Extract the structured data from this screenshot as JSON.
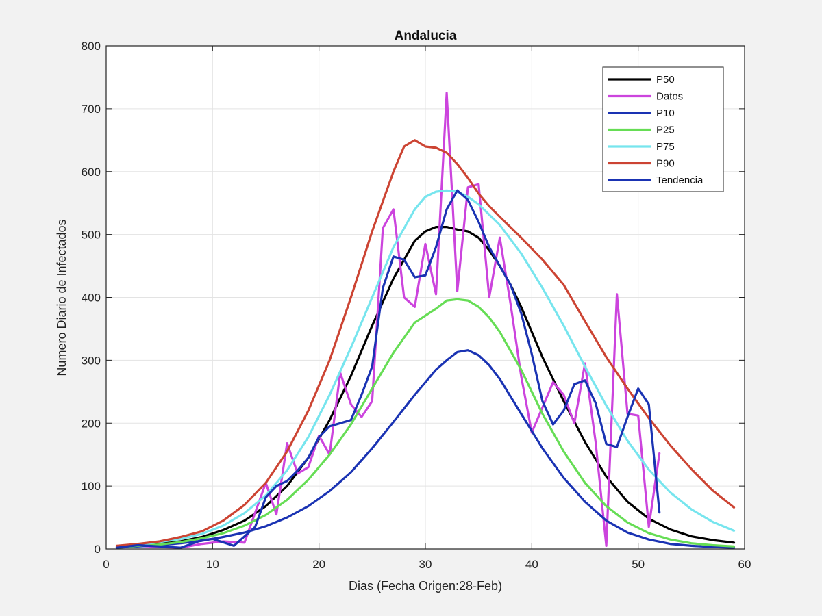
{
  "chart_data": {
    "type": "line",
    "title": "Andalucia",
    "xlabel": "Dias (Fecha Origen:28-Feb)",
    "ylabel": "Numero Diario de Infectados",
    "xlim": [
      0,
      60
    ],
    "ylim": [
      0,
      800
    ],
    "xticks": [
      0,
      10,
      20,
      30,
      40,
      50,
      60
    ],
    "yticks": [
      0,
      100,
      200,
      300,
      400,
      500,
      600,
      700,
      800
    ],
    "xtick_labels": [
      "0",
      "10",
      "20",
      "30",
      "40",
      "50",
      "60"
    ],
    "ytick_labels": [
      "0",
      "100",
      "200",
      "300",
      "400",
      "500",
      "600",
      "700",
      "800"
    ],
    "grid": true,
    "legend_position": "top-right",
    "series": [
      {
        "name": "P50",
        "color": "#000000",
        "x": [
          1,
          3,
          5,
          7,
          9,
          11,
          13,
          15,
          17,
          19,
          21,
          23,
          25,
          27,
          29,
          30,
          31,
          32,
          33,
          34,
          35,
          36,
          37,
          38,
          39,
          41,
          43,
          45,
          47,
          49,
          51,
          53,
          55,
          57,
          59
        ],
        "y": [
          3,
          5,
          8,
          12,
          19,
          30,
          45,
          68,
          100,
          145,
          205,
          275,
          355,
          430,
          490,
          505,
          512,
          512,
          508,
          505,
          495,
          475,
          450,
          420,
          385,
          305,
          235,
          170,
          115,
          75,
          48,
          31,
          20,
          14,
          10
        ]
      },
      {
        "name": "Datos",
        "color": "#cc44dd",
        "x": [
          1,
          3,
          5,
          7,
          9,
          11,
          13,
          15,
          16,
          17,
          18,
          19,
          20,
          21,
          22,
          23,
          24,
          25,
          26,
          27,
          28,
          29,
          30,
          31,
          32,
          33,
          34,
          35,
          36,
          37,
          38,
          39,
          40,
          41,
          42,
          43,
          44,
          45,
          46,
          47,
          48,
          49,
          50,
          51,
          52
        ],
        "y": [
          2,
          5,
          3,
          2,
          8,
          12,
          10,
          105,
          55,
          168,
          120,
          130,
          180,
          150,
          280,
          230,
          210,
          235,
          510,
          540,
          400,
          385,
          485,
          405,
          725,
          410,
          575,
          580,
          400,
          495,
          390,
          275,
          185,
          225,
          265,
          245,
          200,
          295,
          170,
          5,
          405,
          215,
          212,
          35,
          152
        ]
      },
      {
        "name": "P10",
        "color": "#1a33b3",
        "x": [
          1,
          3,
          5,
          7,
          9,
          11,
          13,
          15,
          17,
          19,
          21,
          23,
          25,
          27,
          29,
          31,
          32,
          33,
          34,
          35,
          36,
          37,
          39,
          41,
          43,
          45,
          47,
          49,
          51,
          53,
          55,
          57,
          59
        ],
        "y": [
          2,
          4,
          6,
          9,
          13,
          19,
          26,
          36,
          50,
          68,
          92,
          122,
          160,
          202,
          245,
          285,
          300,
          313,
          316,
          308,
          292,
          270,
          215,
          160,
          113,
          75,
          45,
          26,
          15,
          8,
          5,
          3,
          2
        ]
      },
      {
        "name": "P25",
        "color": "#66dd55",
        "x": [
          1,
          3,
          5,
          7,
          9,
          11,
          13,
          15,
          17,
          19,
          21,
          23,
          25,
          27,
          29,
          31,
          32,
          33,
          34,
          35,
          36,
          37,
          39,
          41,
          43,
          45,
          47,
          49,
          51,
          53,
          55,
          57,
          59
        ],
        "y": [
          2,
          5,
          7,
          11,
          17,
          25,
          37,
          54,
          78,
          110,
          150,
          198,
          255,
          312,
          360,
          382,
          395,
          397,
          395,
          385,
          368,
          345,
          285,
          215,
          155,
          105,
          68,
          42,
          25,
          15,
          9,
          6,
          4
        ]
      },
      {
        "name": "P75",
        "color": "#77e5ee",
        "x": [
          1,
          3,
          5,
          7,
          9,
          11,
          13,
          15,
          17,
          19,
          21,
          23,
          25,
          27,
          29,
          30,
          31,
          32,
          33,
          34,
          35,
          37,
          39,
          41,
          43,
          45,
          47,
          49,
          51,
          53,
          55,
          57,
          59
        ],
        "y": [
          4,
          7,
          11,
          16,
          24,
          37,
          57,
          85,
          125,
          178,
          245,
          320,
          400,
          480,
          540,
          560,
          568,
          570,
          568,
          560,
          548,
          515,
          470,
          415,
          355,
          290,
          228,
          172,
          126,
          90,
          63,
          43,
          29
        ]
      },
      {
        "name": "P90",
        "color": "#cc4433",
        "x": [
          1,
          3,
          5,
          7,
          9,
          11,
          13,
          15,
          17,
          19,
          21,
          23,
          25,
          27,
          28,
          29,
          30,
          31,
          32,
          33,
          34,
          35,
          36,
          37,
          39,
          41,
          43,
          45,
          47,
          49,
          51,
          53,
          55,
          57,
          59
        ],
        "y": [
          5,
          8,
          12,
          19,
          28,
          45,
          70,
          105,
          155,
          220,
          300,
          400,
          505,
          600,
          640,
          650,
          640,
          638,
          630,
          612,
          590,
          565,
          545,
          528,
          495,
          460,
          420,
          362,
          305,
          255,
          208,
          165,
          127,
          93,
          66
        ]
      },
      {
        "name": "Tendencia",
        "color": "#1a33b3",
        "x": [
          1,
          3,
          5,
          7,
          9,
          10,
          12,
          14,
          15,
          16,
          17,
          18,
          19,
          20,
          21,
          22,
          23,
          24,
          25,
          26,
          27,
          28,
          29,
          30,
          31,
          32,
          33,
          34,
          35,
          36,
          37,
          38,
          39,
          40,
          41,
          42,
          43,
          44,
          45,
          46,
          47,
          48,
          49,
          50,
          51,
          52
        ],
        "y": [
          2,
          6,
          4,
          2,
          14,
          16,
          5,
          35,
          82,
          100,
          108,
          125,
          145,
          178,
          195,
          200,
          205,
          245,
          290,
          415,
          465,
          460,
          432,
          435,
          480,
          540,
          570,
          555,
          520,
          480,
          450,
          420,
          375,
          310,
          235,
          198,
          220,
          262,
          268,
          232,
          167,
          162,
          210,
          255,
          230,
          58
        ]
      }
    ],
    "legend": [
      "P50",
      " Datos",
      "P10",
      "P25",
      "P75",
      "P90",
      "Tendencia"
    ]
  }
}
